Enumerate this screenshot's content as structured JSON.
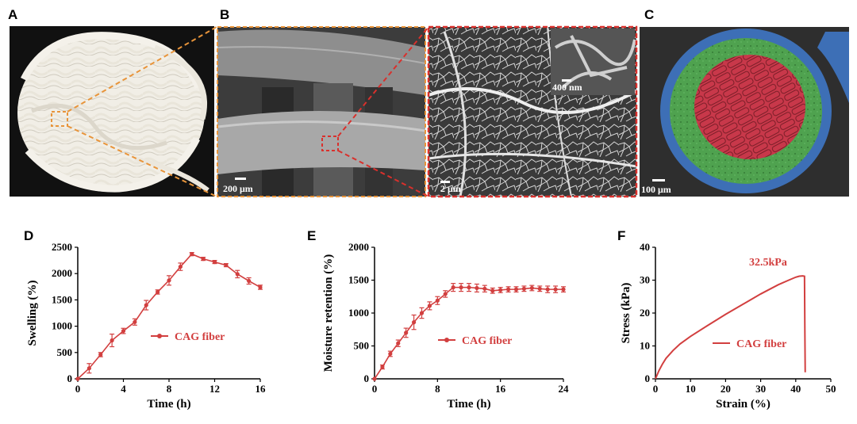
{
  "panels": {
    "A": {
      "label": "A"
    },
    "B": {
      "label": "B",
      "scale_left": "200 μm",
      "scale_right": "2 μm",
      "scale_inset": "400 nm"
    },
    "C": {
      "label": "C",
      "scale": "100 μm"
    },
    "D": {
      "label": "D"
    },
    "E": {
      "label": "E"
    },
    "F": {
      "label": "F"
    }
  },
  "colors": {
    "series": "#d23f3f",
    "dash_orange": "#e8943a",
    "dash_red": "#d9302c",
    "core_red": "#c8384a",
    "ring_green": "#4fa24f",
    "ring_blue": "#3d6fb6"
  },
  "chart_data": [
    {
      "type": "line",
      "id": "D",
      "xlabel": "Time (h)",
      "ylabel": "Swelling (%)",
      "xlim": [
        0,
        16
      ],
      "ylim": [
        0,
        2500
      ],
      "xticks": [
        0,
        4,
        8,
        12,
        16
      ],
      "yticks": [
        0,
        500,
        1000,
        1500,
        2000,
        2500
      ],
      "series": [
        {
          "name": "CAG fiber",
          "x": [
            0,
            1,
            2,
            3,
            4,
            5,
            6,
            7,
            8,
            9,
            10,
            11,
            12,
            13,
            14,
            15,
            16
          ],
          "y": [
            0,
            200,
            460,
            730,
            910,
            1080,
            1400,
            1650,
            1870,
            2130,
            2370,
            2280,
            2220,
            2160,
            1990,
            1860,
            1740
          ],
          "err": [
            0,
            90,
            40,
            120,
            50,
            60,
            90,
            40,
            90,
            70,
            30,
            30,
            30,
            30,
            70,
            60,
            40
          ]
        }
      ]
    },
    {
      "type": "line",
      "id": "E",
      "xlabel": "Time (h)",
      "ylabel": "Moisture retention (%)",
      "xlim": [
        0,
        24
      ],
      "ylim": [
        0,
        2000
      ],
      "xticks": [
        0,
        8,
        16,
        24
      ],
      "yticks": [
        0,
        500,
        1000,
        1500,
        2000
      ],
      "series": [
        {
          "name": "CAG fiber",
          "x": [
            0,
            1,
            2,
            3,
            4,
            5,
            6,
            7,
            8,
            9,
            10,
            11,
            12,
            13,
            14,
            15,
            16,
            17,
            18,
            19,
            20,
            21,
            22,
            23,
            24
          ],
          "y": [
            0,
            180,
            380,
            540,
            700,
            860,
            1000,
            1110,
            1190,
            1290,
            1390,
            1390,
            1390,
            1380,
            1370,
            1340,
            1350,
            1360,
            1360,
            1370,
            1380,
            1370,
            1360,
            1360,
            1360
          ],
          "err": [
            0,
            30,
            40,
            50,
            70,
            110,
            80,
            60,
            60,
            50,
            60,
            60,
            60,
            60,
            50,
            40,
            40,
            40,
            40,
            40,
            40,
            40,
            50,
            50,
            40
          ]
        }
      ]
    },
    {
      "type": "line",
      "id": "F",
      "xlabel": "Strain (%)",
      "ylabel": "Stress (kPa)",
      "xlim": [
        0,
        50
      ],
      "ylim": [
        0,
        40
      ],
      "xticks": [
        0,
        10,
        20,
        30,
        40,
        50
      ],
      "yticks": [
        0,
        10,
        20,
        30,
        40
      ],
      "annotation": "32.5kPa",
      "series": [
        {
          "name": "CAG fiber",
          "x": [
            0,
            1,
            2,
            3,
            5,
            7,
            10,
            15,
            20,
            25,
            30,
            35,
            38,
            40,
            41,
            42,
            42.5,
            42.6,
            42.7
          ],
          "y": [
            0,
            2.5,
            4.5,
            6.2,
            8.6,
            10.6,
            12.9,
            16.3,
            19.6,
            22.7,
            25.8,
            28.6,
            30.0,
            30.9,
            31.2,
            31.3,
            31.2,
            15,
            2
          ]
        }
      ]
    }
  ]
}
